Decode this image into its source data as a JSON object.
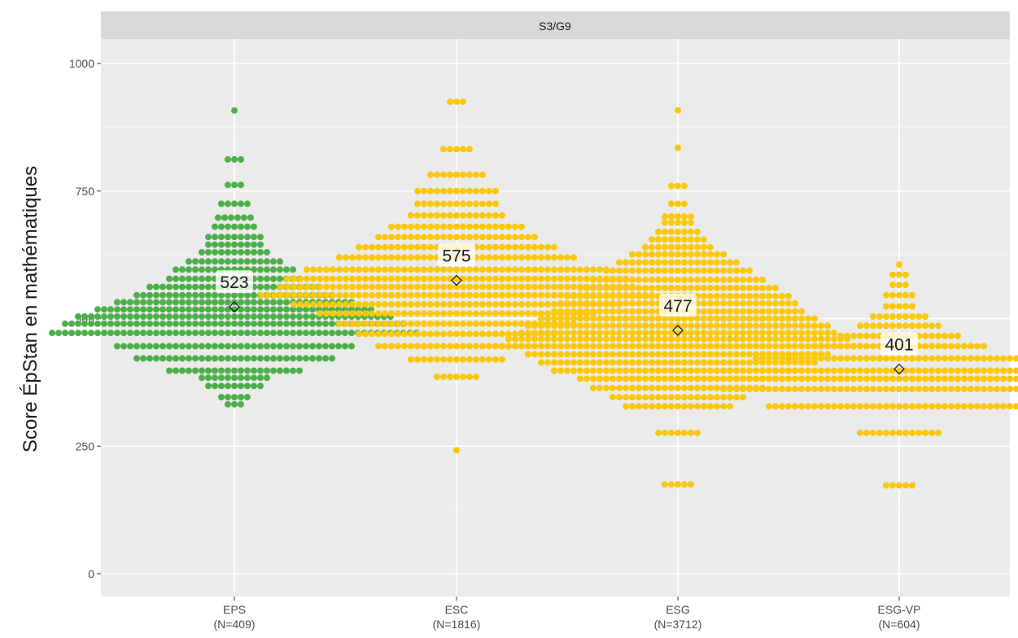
{
  "chart_data": {
    "type": "scatter",
    "subtype": "beeswarm",
    "facet": "S3/G9",
    "ylabel": "Score ÉpStan en mathématiques",
    "xlabel": "",
    "ylim": [
      -35,
      1050
    ],
    "yticks": [
      0,
      250,
      500,
      750,
      1000
    ],
    "grid": true,
    "groups": [
      {
        "name": "EPS",
        "label": "EPS",
        "n_label": "(N=409)",
        "color": "#4DAF4A",
        "mean": 523,
        "mean_label": "523",
        "min": 328,
        "max": 908,
        "dist": [
          [
            908,
            1
          ],
          [
            812,
            3
          ],
          [
            762,
            3
          ],
          [
            725,
            5
          ],
          [
            698,
            6
          ],
          [
            680,
            7
          ],
          [
            660,
            9
          ],
          [
            645,
            9
          ],
          [
            630,
            11
          ],
          [
            612,
            15
          ],
          [
            596,
            19
          ],
          [
            578,
            21
          ],
          [
            562,
            27
          ],
          [
            546,
            31
          ],
          [
            532,
            37
          ],
          [
            518,
            43
          ],
          [
            504,
            49
          ],
          [
            490,
            53
          ],
          [
            472,
            57
          ],
          [
            446,
            37
          ],
          [
            422,
            31
          ],
          [
            398,
            21
          ],
          [
            384,
            11
          ],
          [
            368,
            9
          ],
          [
            346,
            5
          ],
          [
            332,
            3
          ]
        ]
      },
      {
        "name": "ESC",
        "label": "ESC",
        "n_label": "(N=1816)",
        "color": "#F9C80E",
        "mean": 575,
        "mean_label": "575",
        "min": 242,
        "max": 925,
        "dist": [
          [
            925,
            3
          ],
          [
            832,
            5
          ],
          [
            782,
            9
          ],
          [
            750,
            13
          ],
          [
            725,
            13
          ],
          [
            702,
            15
          ],
          [
            680,
            21
          ],
          [
            660,
            25
          ],
          [
            640,
            31
          ],
          [
            620,
            37
          ],
          [
            596,
            47
          ],
          [
            578,
            53
          ],
          [
            562,
            55
          ],
          [
            546,
            61
          ],
          [
            528,
            51
          ],
          [
            510,
            43
          ],
          [
            490,
            37
          ],
          [
            470,
            31
          ],
          [
            446,
            25
          ],
          [
            420,
            15
          ],
          [
            386,
            7
          ],
          [
            242,
            1
          ]
        ]
      },
      {
        "name": "ESG",
        "label": "ESG",
        "n_label": "(N=3712)",
        "color": "#F9C80E",
        "mean": 477,
        "mean_label": "477",
        "min": 175,
        "max": 908,
        "dist": [
          [
            908,
            1
          ],
          [
            835,
            1
          ],
          [
            760,
            3
          ],
          [
            725,
            3
          ],
          [
            700,
            5
          ],
          [
            688,
            5
          ],
          [
            670,
            7
          ],
          [
            655,
            9
          ],
          [
            640,
            11
          ],
          [
            626,
            15
          ],
          [
            610,
            19
          ],
          [
            594,
            23
          ],
          [
            576,
            27
          ],
          [
            560,
            31
          ],
          [
            544,
            35
          ],
          [
            530,
            37
          ],
          [
            514,
            39
          ],
          [
            500,
            43
          ],
          [
            486,
            47
          ],
          [
            472,
            49
          ],
          [
            460,
            53
          ],
          [
            446,
            55
          ],
          [
            430,
            47
          ],
          [
            414,
            43
          ],
          [
            398,
            39
          ],
          [
            382,
            31
          ],
          [
            364,
            27
          ],
          [
            346,
            21
          ],
          [
            328,
            17
          ],
          [
            276,
            7
          ],
          [
            175,
            5
          ]
        ]
      },
      {
        "name": "ESG-VP",
        "label": "ESG-VP",
        "n_label": "(N=604)",
        "color": "#F9C80E",
        "mean": 401,
        "mean_label": "401",
        "min": 173,
        "max": 606,
        "dist": [
          [
            606,
            1
          ],
          [
            586,
            3
          ],
          [
            566,
            3
          ],
          [
            546,
            5
          ],
          [
            524,
            5
          ],
          [
            504,
            9
          ],
          [
            486,
            13
          ],
          [
            466,
            19
          ],
          [
            446,
            27
          ],
          [
            422,
            45
          ],
          [
            398,
            55
          ],
          [
            382,
            55
          ],
          [
            362,
            55
          ],
          [
            328,
            41
          ],
          [
            276,
            13
          ],
          [
            173,
            5
          ]
        ]
      }
    ]
  }
}
